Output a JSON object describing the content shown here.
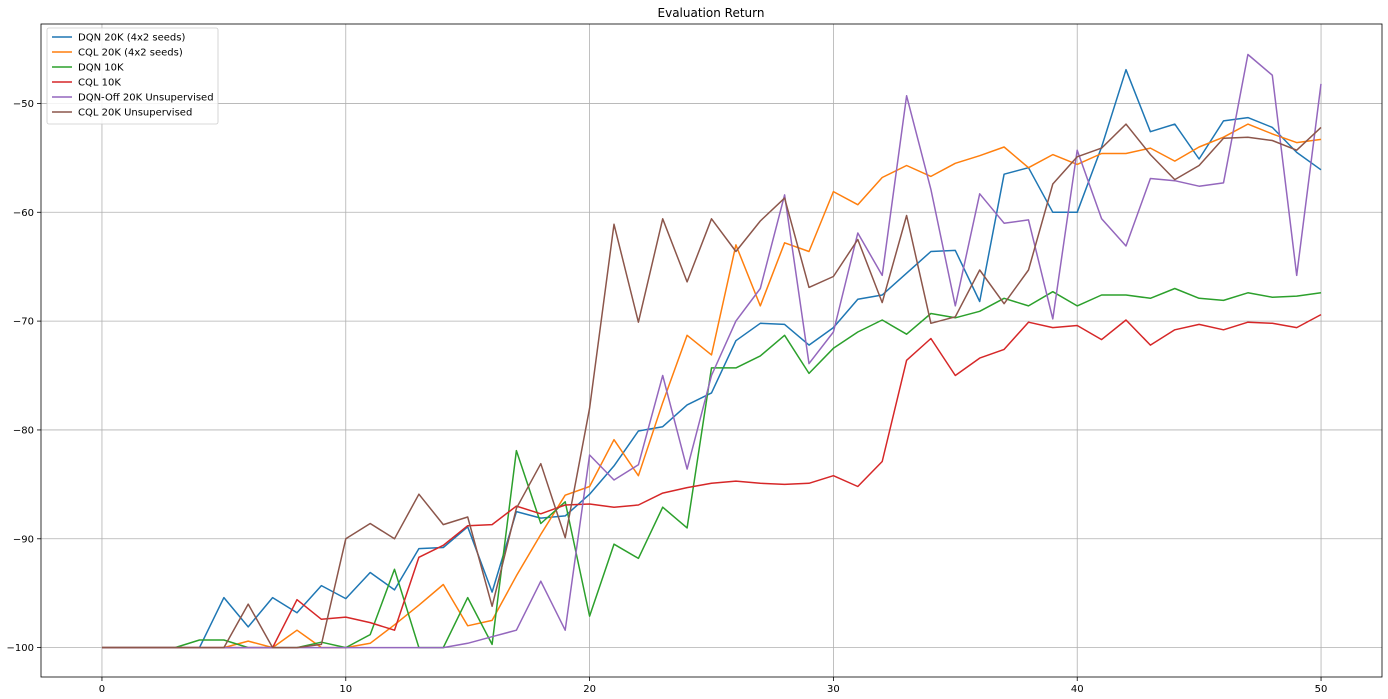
{
  "chart_data": {
    "type": "line",
    "title": "Evaluation Return",
    "xlabel": "",
    "ylabel": "",
    "xlim": [
      -2.5,
      52.5
    ],
    "ylim": [
      -102.7,
      -42.7
    ],
    "xticks": [
      0,
      10,
      20,
      30,
      40,
      50
    ],
    "yticks": [
      -100,
      -90,
      -80,
      -70,
      -60,
      -50
    ],
    "ytick_labels": [
      "−100",
      "−90",
      "−80",
      "−70",
      "−60",
      "−50"
    ],
    "grid": true,
    "legend_position": "top-left",
    "x": [
      0,
      1,
      2,
      3,
      4,
      5,
      6,
      7,
      8,
      9,
      10,
      11,
      12,
      13,
      14,
      15,
      16,
      17,
      18,
      19,
      20,
      21,
      22,
      23,
      24,
      25,
      26,
      27,
      28,
      29,
      30,
      31,
      32,
      33,
      34,
      35,
      36,
      37,
      38,
      39,
      40,
      41,
      42,
      43,
      44,
      45,
      46,
      47,
      48,
      49,
      50
    ],
    "series": [
      {
        "name": "DQN 20K (4x2 seeds)",
        "color": "#1f77b4",
        "values": [
          -100,
          -100,
          -100,
          -100,
          -100,
          -95.4,
          -98.1,
          -95.4,
          -96.8,
          -94.3,
          -95.5,
          -93.1,
          -94.7,
          -90.9,
          -90.8,
          -88.9,
          -94.9,
          -87.5,
          -88.1,
          -87.9,
          -85.9,
          -83.3,
          -80.1,
          -79.7,
          -77.7,
          -76.6,
          -71.8,
          -70.2,
          -70.3,
          -72.2,
          -70.6,
          -68,
          -67.6,
          -65.6,
          -63.6,
          -63.5,
          -68.2,
          -56.5,
          -55.9,
          -60,
          -60,
          -54,
          -46.9,
          -52.6,
          -51.9,
          -55.1,
          -51.6,
          -51.3,
          -52.2,
          -54.5,
          -56.1
        ]
      },
      {
        "name": "CQL 20K (4x2 seeds)",
        "color": "#ff7f0e",
        "values": [
          -100,
          -100,
          -100,
          -100,
          -100,
          -100,
          -99.4,
          -100,
          -98.4,
          -100,
          -100,
          -99.6,
          -97.9,
          -96.1,
          -94.2,
          -98,
          -97.5,
          -93.4,
          -89.6,
          -86,
          -85.2,
          -80.9,
          -84.2,
          -77.5,
          -71.3,
          -73.1,
          -63,
          -68.6,
          -62.8,
          -63.6,
          -58.1,
          -59.3,
          -56.8,
          -55.7,
          -56.7,
          -55.5,
          -54.8,
          -54,
          -55.9,
          -54.7,
          -55.6,
          -54.6,
          -54.6,
          -54.1,
          -55.3,
          -54,
          -53.1,
          -51.9,
          -52.8,
          -53.6,
          -53.3
        ]
      },
      {
        "name": "DQN 10K",
        "color": "#2ca02c",
        "values": [
          -100,
          -100,
          -100,
          -100,
          -99.3,
          -99.3,
          -100,
          -100,
          -100,
          -99.5,
          -100,
          -98.8,
          -92.8,
          -100,
          -100,
          -95.4,
          -99.7,
          -81.9,
          -88.6,
          -86.6,
          -97.1,
          -90.5,
          -91.8,
          -87.1,
          -89,
          -74.3,
          -74.3,
          -73.2,
          -71.3,
          -74.8,
          -72.5,
          -71,
          -69.9,
          -71.2,
          -69.3,
          -69.7,
          -69.1,
          -67.9,
          -68.6,
          -67.3,
          -68.6,
          -67.6,
          -67.6,
          -67.9,
          -67,
          -67.9,
          -68.1,
          -67.4,
          -67.8,
          -67.7,
          -67.4
        ]
      },
      {
        "name": "CQL 10K",
        "color": "#d62728",
        "values": [
          -100,
          -100,
          -100,
          -100,
          -100,
          -100,
          -100,
          -100,
          -95.6,
          -97.4,
          -97.2,
          -97.7,
          -98.4,
          -91.7,
          -90.6,
          -88.8,
          -88.7,
          -87,
          -87.7,
          -86.9,
          -86.8,
          -87.1,
          -86.9,
          -85.8,
          -85.3,
          -84.9,
          -84.7,
          -84.9,
          -85,
          -84.9,
          -84.2,
          -85.2,
          -82.9,
          -73.6,
          -71.6,
          -75,
          -73.4,
          -72.6,
          -70.1,
          -70.6,
          -70.4,
          -71.7,
          -69.9,
          -72.2,
          -70.8,
          -70.3,
          -70.8,
          -70.1,
          -70.2,
          -70.6,
          -69.4
        ]
      },
      {
        "name": "DQN-Off 20K Unsupervised",
        "color": "#9467bd",
        "values": [
          -100,
          -100,
          -100,
          -100,
          -100,
          -100,
          -100,
          -100,
          -100,
          -100,
          -100,
          -100,
          -100,
          -100,
          -100,
          -99.6,
          -99,
          -98.4,
          -93.9,
          -98.4,
          -82.3,
          -84.6,
          -83.2,
          -75,
          -83.6,
          -75,
          -70,
          -67,
          -58.4,
          -73.9,
          -71,
          -61.9,
          -65.8,
          -49.3,
          -57.9,
          -68.6,
          -58.3,
          -61,
          -60.7,
          -69.8,
          -54.3,
          -60.6,
          -63.1,
          -56.9,
          -57.1,
          -57.6,
          -57.3,
          -45.5,
          -47.4,
          -65.8,
          -48.2
        ]
      },
      {
        "name": "CQL 20K Unsupervised",
        "color": "#8c564b",
        "values": [
          -100,
          -100,
          -100,
          -100,
          -100,
          -100,
          -96,
          -100,
          -100,
          -99.7,
          -90,
          -88.6,
          -90,
          -85.9,
          -88.7,
          -88,
          -96.2,
          -87.2,
          -83.1,
          -89.9,
          -78,
          -61.1,
          -70.1,
          -60.6,
          -66.4,
          -60.6,
          -63.6,
          -60.8,
          -58.7,
          -66.9,
          -65.9,
          -62.5,
          -68.3,
          -60.3,
          -70.2,
          -69.6,
          -65.3,
          -68.4,
          -65.3,
          -57.4,
          -54.9,
          -54.1,
          -51.9,
          -54.7,
          -57,
          -55.7,
          -53.2,
          -53.1,
          -53.4,
          -54.3,
          -52.2
        ]
      }
    ]
  }
}
